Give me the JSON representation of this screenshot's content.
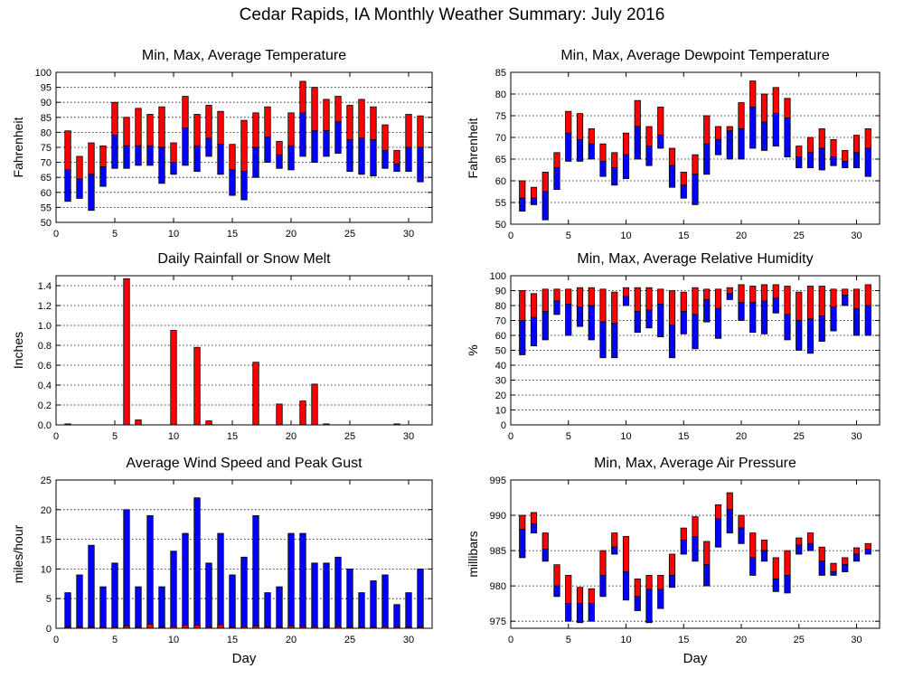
{
  "title": "Cedar Rapids, IA Monthly Weather Summary: July 2016",
  "colors": {
    "max_bar": "#ff0000",
    "min_bar": "#0000ff",
    "grid": "#000000"
  },
  "chart_data": [
    {
      "id": "temperature",
      "type": "bar",
      "style": "floating-range",
      "title": "Min, Max, Average Temperature",
      "xlabel": "",
      "ylabel": "Fahrenheit",
      "xlim": [
        0,
        32
      ],
      "ylim": [
        50,
        100
      ],
      "yticks": [
        50,
        55,
        60,
        65,
        70,
        75,
        80,
        85,
        90,
        95,
        100
      ],
      "xticks": [
        0,
        5,
        10,
        15,
        20,
        25,
        30
      ],
      "x": [
        1,
        2,
        3,
        4,
        5,
        6,
        7,
        8,
        9,
        10,
        11,
        12,
        13,
        14,
        15,
        16,
        17,
        18,
        19,
        20,
        21,
        22,
        23,
        24,
        25,
        26,
        27,
        28,
        29,
        30,
        31
      ],
      "min": [
        57,
        58,
        54,
        62,
        68,
        68,
        69,
        69,
        63,
        66,
        69,
        67,
        72,
        66,
        59,
        57.5,
        65,
        70,
        68,
        67.5,
        72,
        70,
        72,
        73,
        67,
        66,
        65.5,
        68,
        67,
        67,
        63.5
      ],
      "avg": [
        67.5,
        64.5,
        66,
        68.5,
        79,
        75.5,
        75.5,
        75.5,
        75,
        70,
        81.5,
        75.5,
        78,
        76,
        67.5,
        67,
        75,
        78.5,
        72.5,
        75.5,
        86.5,
        80.5,
        80.5,
        83.5,
        77.5,
        78,
        77.5,
        74,
        69.5,
        75,
        75
      ],
      "max": [
        80.5,
        72,
        76.5,
        75.5,
        90,
        85,
        88,
        86,
        88.5,
        76.5,
        92,
        86,
        89,
        87,
        76,
        84,
        86.5,
        88.5,
        77,
        86.5,
        97,
        95,
        91,
        92,
        89,
        91,
        88.5,
        82.5,
        74,
        86,
        85.5
      ]
    },
    {
      "id": "dewpoint",
      "type": "bar",
      "style": "floating-range",
      "title": "Min, Max, Average Dewpoint Temperature",
      "xlabel": "",
      "ylabel": "Fahrenheit",
      "xlim": [
        0,
        32
      ],
      "ylim": [
        50,
        85
      ],
      "yticks": [
        50,
        55,
        60,
        65,
        70,
        75,
        80,
        85
      ],
      "xticks": [
        0,
        5,
        10,
        15,
        20,
        25,
        30
      ],
      "x": [
        1,
        2,
        3,
        4,
        5,
        6,
        7,
        8,
        9,
        10,
        11,
        12,
        13,
        14,
        15,
        16,
        17,
        18,
        19,
        20,
        21,
        22,
        23,
        24,
        25,
        26,
        27,
        28,
        29,
        30,
        31
      ],
      "min": [
        53,
        54.5,
        51,
        58,
        64.5,
        64.5,
        65,
        61,
        59,
        60.5,
        65,
        63.5,
        67.5,
        58.5,
        56,
        54.5,
        61.5,
        66,
        65,
        65,
        67.5,
        67,
        68,
        65.5,
        63,
        63,
        62.5,
        63.5,
        63,
        63,
        61
      ],
      "avg": [
        56,
        56,
        57.5,
        63,
        71,
        69.5,
        68.5,
        64.5,
        63,
        66,
        72.5,
        68,
        70.5,
        63.5,
        59,
        61.5,
        68.5,
        69.5,
        71.5,
        72,
        77,
        73.5,
        75.5,
        74.5,
        65.5,
        66.5,
        67.5,
        65.5,
        64.5,
        66.5,
        67.5
      ],
      "max": [
        60,
        58.5,
        62,
        66.5,
        76,
        75.5,
        72,
        68.5,
        66.5,
        71,
        78.5,
        72.5,
        77,
        67.5,
        62,
        66,
        75,
        72.5,
        72.5,
        78,
        83,
        80,
        81.5,
        79,
        68,
        70,
        72,
        69.5,
        67,
        70.5,
        72
      ]
    },
    {
      "id": "rainfall",
      "type": "bar",
      "title": "Daily Rainfall or Snow Melt",
      "xlabel": "",
      "ylabel": "Inches",
      "xlim": [
        0,
        32
      ],
      "ylim": [
        0,
        1.5
      ],
      "yticks": [
        0,
        0.2,
        0.4,
        0.6,
        0.8,
        1.0,
        1.2,
        1.4
      ],
      "ytick_labels": [
        "0.0",
        "0.2",
        "0.4",
        "0.6",
        "0.8",
        "1.0",
        "1.2",
        "1.4"
      ],
      "xticks": [
        0,
        5,
        10,
        15,
        20,
        25,
        30
      ],
      "x": [
        1,
        2,
        3,
        4,
        5,
        6,
        7,
        8,
        9,
        10,
        11,
        12,
        13,
        14,
        15,
        16,
        17,
        18,
        19,
        20,
        21,
        22,
        23,
        24,
        25,
        26,
        27,
        28,
        29,
        30,
        31
      ],
      "values": [
        0.01,
        0,
        0,
        0,
        0,
        1.47,
        0.05,
        0,
        0,
        0.95,
        0,
        0.78,
        0.04,
        0,
        0,
        0,
        0.63,
        0,
        0.21,
        0,
        0.24,
        0.41,
        0.01,
        0,
        0,
        0,
        0,
        0,
        0.01,
        0,
        0
      ]
    },
    {
      "id": "humidity",
      "type": "bar",
      "style": "floating-range",
      "title": "Min, Max, Average Relative Humidity",
      "xlabel": "",
      "ylabel": "%",
      "xlim": [
        0,
        32
      ],
      "ylim": [
        0,
        100
      ],
      "yticks": [
        0,
        10,
        20,
        30,
        40,
        50,
        60,
        70,
        80,
        90,
        100
      ],
      "xticks": [
        0,
        5,
        10,
        15,
        20,
        25,
        30
      ],
      "x": [
        1,
        2,
        3,
        4,
        5,
        6,
        7,
        8,
        9,
        10,
        11,
        12,
        13,
        14,
        15,
        16,
        17,
        18,
        19,
        20,
        21,
        22,
        23,
        24,
        25,
        26,
        27,
        28,
        29,
        30,
        31
      ],
      "min": [
        47,
        53,
        57,
        74,
        60,
        66,
        57,
        45,
        45,
        80,
        62,
        65,
        59,
        45,
        61,
        51,
        69,
        58,
        84,
        70,
        62,
        61,
        75,
        57,
        50,
        48,
        56,
        63,
        80,
        60,
        60
      ],
      "avg": [
        70,
        72,
        76,
        83,
        81,
        79,
        80,
        69,
        68,
        86,
        76,
        77,
        81,
        67,
        76,
        74,
        84,
        78,
        88,
        82,
        82,
        83,
        85,
        74,
        70,
        71,
        73,
        79,
        87,
        78,
        80
      ],
      "max": [
        90,
        88,
        91,
        91,
        91,
        92,
        92,
        91,
        89,
        92,
        92,
        92,
        91,
        90,
        89,
        92,
        91,
        91,
        92,
        94,
        93,
        94,
        94,
        93,
        89,
        93,
        93,
        91,
        91,
        91,
        94
      ]
    },
    {
      "id": "wind",
      "type": "bar",
      "title": "Average Wind Speed and Peak Gust",
      "xlabel": "Day",
      "ylabel": "miles/hour",
      "xlim": [
        0,
        32
      ],
      "ylim": [
        0,
        25
      ],
      "yticks": [
        0,
        5,
        10,
        15,
        20,
        25
      ],
      "xticks": [
        0,
        5,
        10,
        15,
        20,
        25,
        30
      ],
      "x": [
        1,
        2,
        3,
        4,
        5,
        6,
        7,
        8,
        9,
        10,
        11,
        12,
        13,
        14,
        15,
        16,
        17,
        18,
        19,
        20,
        21,
        22,
        23,
        24,
        25,
        26,
        27,
        28,
        29,
        30,
        31
      ],
      "series": [
        {
          "values": [
            6,
            9,
            14,
            7,
            11,
            20,
            7,
            19,
            7,
            13,
            16,
            22,
            11,
            16,
            9,
            12,
            19,
            6,
            7,
            16,
            16,
            11,
            11,
            12,
            10,
            6,
            8,
            9,
            4,
            6,
            10
          ]
        },
        {
          "values": [
            0.2,
            0.2,
            0.2,
            0.2,
            0.2,
            0.4,
            0.2,
            0.7,
            0.2,
            0.3,
            0.5,
            0.5,
            0.2,
            0.6,
            0.2,
            0.3,
            0.4,
            0.2,
            0.2,
            0.4,
            0.3,
            0.3,
            0.2,
            0.3,
            0.2,
            0.2,
            0.2,
            0.3,
            0.2,
            0.2,
            0.2
          ]
        }
      ]
    },
    {
      "id": "pressure",
      "type": "bar",
      "style": "floating-range",
      "title": "Min, Max, Average Air Pressure",
      "xlabel": "Day",
      "ylabel": "millibars",
      "xlim": [
        0,
        32
      ],
      "ylim": [
        974,
        995
      ],
      "yticks": [
        975,
        980,
        985,
        990,
        995
      ],
      "xticks": [
        0,
        5,
        10,
        15,
        20,
        25,
        30
      ],
      "x": [
        1,
        2,
        3,
        4,
        5,
        6,
        7,
        8,
        9,
        10,
        11,
        12,
        13,
        14,
        15,
        16,
        17,
        18,
        19,
        20,
        21,
        22,
        23,
        24,
        25,
        26,
        27,
        28,
        29,
        30,
        31
      ],
      "min": [
        984,
        987.5,
        983.5,
        978.5,
        975,
        974.8,
        975,
        978.5,
        984.5,
        978,
        976.5,
        974.8,
        976.8,
        979.8,
        984.5,
        983.5,
        980,
        985.5,
        987.5,
        986,
        981.5,
        983.5,
        979.2,
        979,
        984.5,
        985,
        981.5,
        981.5,
        982,
        983.5,
        984.5
      ],
      "avg": [
        988,
        988.8,
        985.2,
        980,
        977.5,
        977.5,
        977.5,
        981.5,
        985.5,
        982,
        978.5,
        979.5,
        979.5,
        981.5,
        986.5,
        987,
        983,
        989.5,
        990.8,
        988.2,
        984,
        985,
        981,
        981.5,
        985.8,
        986,
        983.5,
        982,
        983,
        984.5,
        985.2
      ],
      "max": [
        990,
        990.4,
        987.5,
        983,
        981.5,
        979.8,
        979.6,
        985,
        987.5,
        987,
        981,
        981.5,
        981.5,
        984.5,
        988.2,
        989.8,
        986.3,
        991.5,
        993.2,
        990,
        987.5,
        986.5,
        984,
        985,
        986.8,
        987.5,
        985.5,
        983.2,
        984,
        985.4,
        986
      ]
    }
  ]
}
